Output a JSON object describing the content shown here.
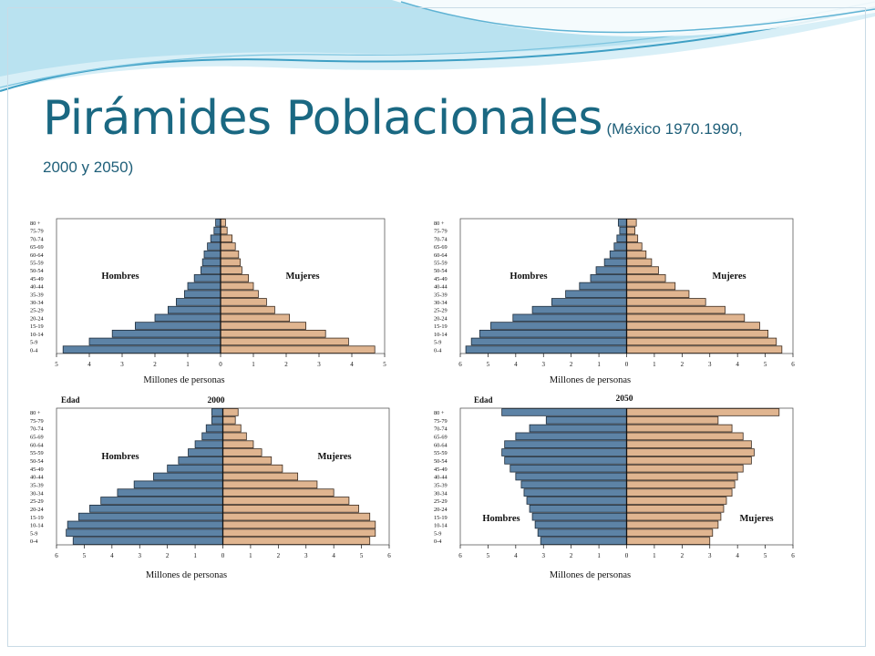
{
  "slide": {
    "title": "Pirámides Poblacionales",
    "subtitle_line1": "(México 1970.1990,",
    "subtitle_line2": "2000 y 2050)"
  },
  "colors": {
    "male": "#5d83a6",
    "female": "#e0b590",
    "title": "#1a6882",
    "wave_dark": "#3e9fc4",
    "wave_light": "#b9e2f0"
  },
  "chart_data": [
    {
      "type": "bar",
      "orientation": "population-pyramid",
      "title": "",
      "edad_label": "",
      "xlabel": "Millones de personas",
      "male_label": "Hombres",
      "female_label": "Mujeres",
      "categories": [
        "80 +",
        "75-79",
        "70-74",
        "65-69",
        "60-64",
        "55-59",
        "50-54",
        "45-49",
        "40-44",
        "35-39",
        "30-34",
        "25-29",
        "20-24",
        "15-19",
        "10-14",
        "5-9",
        "0-4"
      ],
      "xmax": 5,
      "ticks": [
        "5",
        "4",
        "3",
        "2",
        "1",
        "0",
        "1",
        "2",
        "3",
        "4",
        "5"
      ],
      "series": [
        {
          "name": "Hombres",
          "values": [
            0.15,
            0.2,
            0.3,
            0.4,
            0.5,
            0.55,
            0.6,
            0.8,
            1.0,
            1.1,
            1.35,
            1.6,
            2.0,
            2.6,
            3.3,
            4.0,
            4.8
          ]
        },
        {
          "name": "Mujeres",
          "values": [
            0.15,
            0.2,
            0.35,
            0.45,
            0.55,
            0.6,
            0.65,
            0.85,
            1.0,
            1.15,
            1.4,
            1.65,
            2.1,
            2.6,
            3.2,
            3.9,
            4.7
          ]
        }
      ]
    },
    {
      "type": "bar",
      "orientation": "population-pyramid",
      "title": "",
      "edad_label": "",
      "xlabel": "Millones de personas",
      "male_label": "Hombres",
      "female_label": "Mujeres",
      "categories": [
        "80 +",
        "75-79",
        "70-74",
        "65-69",
        "60-64",
        "55-59",
        "50-54",
        "45-49",
        "40-44",
        "35-39",
        "30-34",
        "25-29",
        "20-24",
        "15-19",
        "10-14",
        "5-9",
        "0-4"
      ],
      "xmax": 6,
      "ticks": [
        "6",
        "5",
        "4",
        "3",
        "2",
        "1",
        "0",
        "1",
        "2",
        "3",
        "4",
        "5",
        "6"
      ],
      "series": [
        {
          "name": "Hombres",
          "values": [
            0.3,
            0.25,
            0.35,
            0.45,
            0.6,
            0.8,
            1.1,
            1.3,
            1.7,
            2.2,
            2.7,
            3.4,
            4.1,
            4.9,
            5.3,
            5.6,
            5.8
          ]
        },
        {
          "name": "Mujeres",
          "values": [
            0.35,
            0.3,
            0.4,
            0.55,
            0.7,
            0.9,
            1.15,
            1.4,
            1.75,
            2.25,
            2.85,
            3.55,
            4.25,
            4.8,
            5.1,
            5.4,
            5.6
          ]
        }
      ]
    },
    {
      "type": "bar",
      "orientation": "population-pyramid",
      "title": "2000",
      "edad_label": "Edad",
      "xlabel": "Millones de personas",
      "male_label": "Hombres",
      "female_label": "Mujeres",
      "categories": [
        "80 +",
        "75-79",
        "70-74",
        "65-69",
        "60-64",
        "55-59",
        "50-54",
        "45-49",
        "40-44",
        "35-39",
        "30-34",
        "25-29",
        "20-24",
        "15-19",
        "10-14",
        "5-9",
        "0-4"
      ],
      "xmax": 6,
      "ticks": [
        "6",
        "5",
        "4",
        "3",
        "2",
        "1",
        "0",
        "1",
        "2",
        "3",
        "4",
        "5",
        "6"
      ],
      "series": [
        {
          "name": "Hombres",
          "values": [
            0.4,
            0.4,
            0.6,
            0.75,
            1.0,
            1.25,
            1.6,
            2.0,
            2.5,
            3.2,
            3.8,
            4.4,
            4.8,
            5.2,
            5.6,
            5.65,
            5.4
          ]
        },
        {
          "name": "Mujeres",
          "values": [
            0.55,
            0.45,
            0.65,
            0.85,
            1.1,
            1.4,
            1.75,
            2.15,
            2.7,
            3.4,
            4.0,
            4.55,
            4.9,
            5.3,
            5.5,
            5.5,
            5.3
          ]
        }
      ]
    },
    {
      "type": "bar",
      "orientation": "population-pyramid",
      "title": "2050",
      "edad_label": "Edad",
      "xlabel": "Millones de personas",
      "male_label": "Hombres",
      "female_label": "Mujeres",
      "categories": [
        "80 +",
        "75-79",
        "70-74",
        "65-69",
        "60-64",
        "55-59",
        "50-54",
        "45-49",
        "40-44",
        "35-39",
        "30-34",
        "25-29",
        "20-24",
        "15-19",
        "10-14",
        "5-9",
        "0-4"
      ],
      "xmax": 6,
      "ticks": [
        "6",
        "5",
        "4",
        "3",
        "2",
        "1",
        "0",
        "1",
        "2",
        "3",
        "4",
        "5",
        "6"
      ],
      "series": [
        {
          "name": "Hombres",
          "values": [
            4.5,
            2.9,
            3.5,
            4.0,
            4.4,
            4.5,
            4.4,
            4.2,
            4.0,
            3.8,
            3.7,
            3.6,
            3.5,
            3.4,
            3.3,
            3.2,
            3.1
          ]
        },
        {
          "name": "Mujeres",
          "values": [
            5.5,
            3.3,
            3.8,
            4.2,
            4.5,
            4.6,
            4.5,
            4.2,
            4.0,
            3.9,
            3.8,
            3.6,
            3.5,
            3.4,
            3.3,
            3.1,
            3.0
          ]
        }
      ]
    }
  ]
}
